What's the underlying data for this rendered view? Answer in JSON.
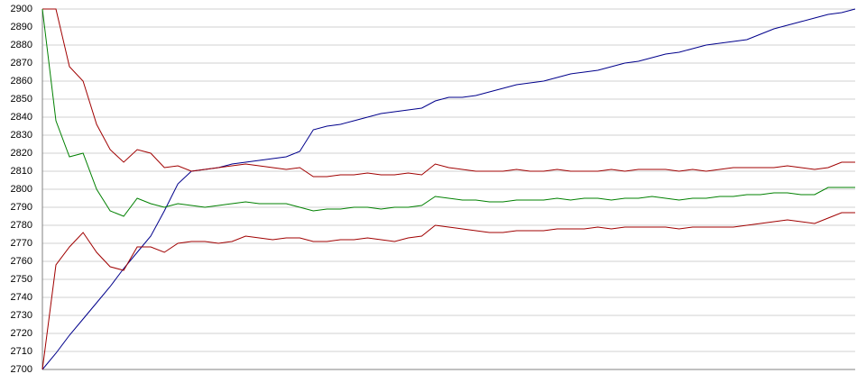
{
  "chart_data": {
    "type": "line",
    "ylim": [
      2700,
      2900
    ],
    "yticks": [
      2700,
      2710,
      2720,
      2730,
      2740,
      2750,
      2760,
      2770,
      2780,
      2790,
      2800,
      2810,
      2820,
      2830,
      2840,
      2850,
      2860,
      2870,
      2880,
      2890,
      2900
    ],
    "grid": true,
    "series": [
      {
        "color": "#00008b",
        "values": [
          2700,
          2709,
          2719,
          2728,
          2737,
          2746,
          2756,
          2765,
          2774,
          2788,
          2803,
          2810,
          2811,
          2812,
          2814,
          2815,
          2816,
          2817,
          2818,
          2821,
          2833,
          2835,
          2836,
          2838,
          2840,
          2842,
          2843,
          2844,
          2845,
          2849,
          2851,
          2851,
          2852,
          2854,
          2856,
          2858,
          2859,
          2860,
          2862,
          2864,
          2865,
          2866,
          2868,
          2870,
          2871,
          2873,
          2875,
          2876,
          2878,
          2880,
          2881,
          2882,
          2883,
          2886,
          2889,
          2891,
          2893,
          2895,
          2897,
          2898,
          2900
        ]
      },
      {
        "color": "#a00000",
        "values": [
          2900,
          2900,
          2868,
          2860,
          2836,
          2822,
          2815,
          2822,
          2820,
          2812,
          2813,
          2810,
          2811,
          2812,
          2813,
          2814,
          2813,
          2812,
          2811,
          2812,
          2807,
          2807,
          2808,
          2808,
          2809,
          2808,
          2808,
          2809,
          2808,
          2814,
          2812,
          2811,
          2810,
          2810,
          2810,
          2811,
          2810,
          2810,
          2811,
          2810,
          2810,
          2810,
          2811,
          2810,
          2811,
          2811,
          2811,
          2810,
          2811,
          2810,
          2811,
          2812,
          2812,
          2812,
          2812,
          2813,
          2812,
          2811,
          2812,
          2815,
          2815
        ]
      },
      {
        "color": "#008000",
        "values": [
          2900,
          2838,
          2818,
          2820,
          2800,
          2788,
          2785,
          2795,
          2792,
          2790,
          2792,
          2791,
          2790,
          2791,
          2792,
          2793,
          2792,
          2792,
          2792,
          2790,
          2788,
          2789,
          2789,
          2790,
          2790,
          2789,
          2790,
          2790,
          2791,
          2796,
          2795,
          2794,
          2794,
          2793,
          2793,
          2794,
          2794,
          2794,
          2795,
          2794,
          2795,
          2795,
          2794,
          2795,
          2795,
          2796,
          2795,
          2794,
          2795,
          2795,
          2796,
          2796,
          2797,
          2797,
          2798,
          2798,
          2797,
          2797,
          2801,
          2801,
          2801
        ]
      },
      {
        "color": "#a00000",
        "values": [
          2700,
          2758,
          2768,
          2776,
          2765,
          2757,
          2755,
          2768,
          2768,
          2765,
          2770,
          2771,
          2771,
          2770,
          2771,
          2774,
          2773,
          2772,
          2773,
          2773,
          2771,
          2771,
          2772,
          2772,
          2773,
          2772,
          2771,
          2773,
          2774,
          2780,
          2779,
          2778,
          2777,
          2776,
          2776,
          2777,
          2777,
          2777,
          2778,
          2778,
          2778,
          2779,
          2778,
          2779,
          2779,
          2779,
          2779,
          2778,
          2779,
          2779,
          2779,
          2779,
          2780,
          2781,
          2782,
          2783,
          2782,
          2781,
          2784,
          2787,
          2787
        ]
      }
    ]
  }
}
